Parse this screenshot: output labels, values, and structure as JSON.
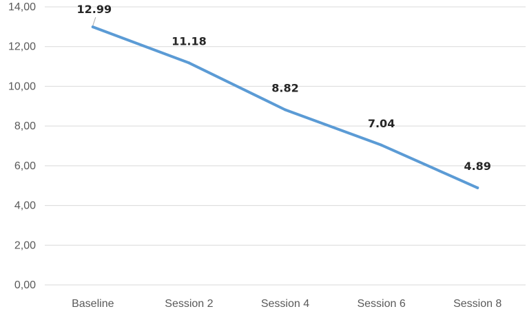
{
  "chart_data": {
    "type": "line",
    "title": "",
    "xlabel": "",
    "ylabel": "",
    "categories": [
      "Baseline",
      "Session 2",
      "Session 4",
      "Session 6",
      "Session 8"
    ],
    "series": [
      {
        "values": [
          12.99,
          11.18,
          8.82,
          7.04,
          4.89
        ],
        "color": "#5b9bd5"
      }
    ],
    "data_labels": [
      "12.99",
      "11.18",
      "8.82",
      "7.04",
      "4.89"
    ],
    "ylim": [
      0,
      14
    ],
    "y_ticks": [
      0,
      2,
      4,
      6,
      8,
      10,
      12,
      14
    ],
    "y_tick_labels": [
      "0,00",
      "2,00",
      "4,00",
      "6,00",
      "8,00",
      "10,00",
      "12,00",
      "14,00"
    ],
    "grid": true,
    "legend": "none"
  }
}
